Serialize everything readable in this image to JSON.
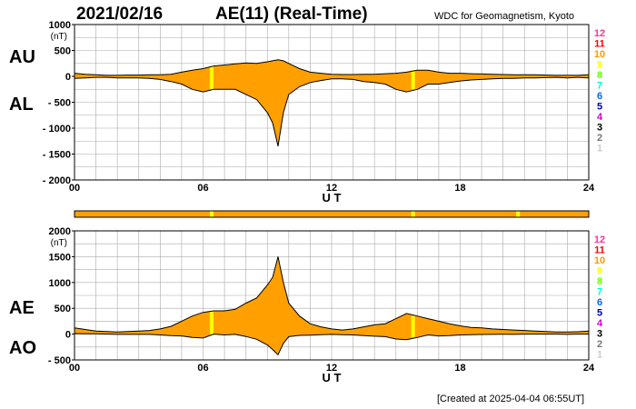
{
  "header": {
    "date": "2021/02/16",
    "title": "AE(11) (Real-Time)",
    "org": "WDC for Geomagnetism, Kyoto",
    "footer": "[Created at 2025-04-04 06:55UT]"
  },
  "panels": {
    "top": {
      "upper_label": "AU",
      "lower_label": "AL"
    },
    "bottom": {
      "upper_label": "AE",
      "lower_label": "AO"
    }
  },
  "station_scale": {
    "entries": [
      {
        "label": "12",
        "color": "#ff3399"
      },
      {
        "label": "11",
        "color": "#ff0000"
      },
      {
        "label": "10",
        "color": "#ff9900"
      },
      {
        "label": "9",
        "color": "#ffff00"
      },
      {
        "label": "8",
        "color": "#66ff00"
      },
      {
        "label": "7",
        "color": "#00ffcc"
      },
      {
        "label": "6",
        "color": "#0066ff"
      },
      {
        "label": "5",
        "color": "#0000aa"
      },
      {
        "label": "4",
        "color": "#cc00cc"
      },
      {
        "label": "3",
        "color": "#000000"
      },
      {
        "label": "2",
        "color": "#777777"
      },
      {
        "label": "1",
        "color": "#cccccc"
      }
    ]
  },
  "colors": {
    "fill": "#ffa000",
    "gap_fill": "#ffff00",
    "line": "#000000",
    "grid": "#aaaaaa"
  },
  "chart_data": [
    {
      "type": "area",
      "panel": "AU/AL",
      "xlabel": "U T",
      "ylabel_unit": "(nT)",
      "x_ticks": [
        "00",
        "06",
        "12",
        "18",
        "24"
      ],
      "xlim": [
        0,
        24
      ],
      "y_ticks": [
        "1000",
        "500",
        "0",
        "- 500",
        "- 1000",
        "- 1500",
        "- 2000"
      ],
      "ylim": [
        -2000,
        1000
      ],
      "grid": true,
      "x": [
        0,
        0.5,
        1,
        1.5,
        2,
        2.5,
        3,
        3.5,
        4,
        4.5,
        5,
        5.5,
        6,
        6.5,
        7,
        7.5,
        8,
        8.5,
        9,
        9.25,
        9.5,
        9.75,
        10,
        10.5,
        11,
        11.5,
        12,
        12.5,
        13,
        13.5,
        14,
        14.5,
        15,
        15.5,
        16,
        16.5,
        17,
        17.5,
        18,
        18.5,
        19,
        19.5,
        20,
        20.5,
        21,
        21.5,
        22,
        22.5,
        23,
        23.5,
        24
      ],
      "series": [
        {
          "name": "AU",
          "values": [
            60,
            40,
            30,
            20,
            20,
            25,
            25,
            30,
            30,
            40,
            80,
            120,
            150,
            200,
            220,
            240,
            260,
            250,
            280,
            300,
            320,
            300,
            250,
            150,
            80,
            60,
            40,
            35,
            35,
            40,
            40,
            50,
            60,
            80,
            120,
            120,
            80,
            60,
            60,
            50,
            45,
            40,
            35,
            30,
            30,
            30,
            25,
            20,
            20,
            20,
            30
          ]
        },
        {
          "name": "AL",
          "values": [
            -40,
            -30,
            -20,
            -20,
            -30,
            -30,
            -30,
            -40,
            -60,
            -100,
            -150,
            -250,
            -300,
            -250,
            -250,
            -250,
            -350,
            -450,
            -700,
            -900,
            -1350,
            -700,
            -350,
            -200,
            -120,
            -80,
            -50,
            -50,
            -60,
            -100,
            -120,
            -150,
            -250,
            -300,
            -250,
            -150,
            -150,
            -120,
            -90,
            -70,
            -60,
            -50,
            -40,
            -40,
            -30,
            -30,
            -25,
            -20,
            -30,
            -20,
            -30
          ]
        }
      ],
      "gaps": [
        6.4,
        15.8
      ]
    },
    {
      "type": "area",
      "panel": "AE/AO",
      "xlabel": "U T",
      "ylabel_unit": "(nT)",
      "x_ticks": [
        "00",
        "06",
        "12",
        "18",
        "24"
      ],
      "xlim": [
        0,
        24
      ],
      "y_ticks": [
        "2000",
        "1500",
        "1000",
        "500",
        "0",
        "- 500"
      ],
      "ylim": [
        -500,
        2000
      ],
      "grid": true,
      "x": [
        0,
        0.5,
        1,
        1.5,
        2,
        2.5,
        3,
        3.5,
        4,
        4.5,
        5,
        5.5,
        6,
        6.5,
        7,
        7.5,
        8,
        8.5,
        9,
        9.25,
        9.5,
        9.75,
        10,
        10.5,
        11,
        11.5,
        12,
        12.5,
        13,
        13.5,
        14,
        14.5,
        15,
        15.5,
        16,
        16.5,
        17,
        17.5,
        18,
        18.5,
        19,
        19.5,
        20,
        20.5,
        21,
        21.5,
        22,
        22.5,
        23,
        23.5,
        24
      ],
      "series": [
        {
          "name": "AE",
          "values": [
            120,
            90,
            60,
            50,
            40,
            50,
            60,
            70,
            100,
            150,
            250,
            350,
            420,
            450,
            450,
            480,
            600,
            700,
            950,
            1100,
            1500,
            1000,
            600,
            350,
            200,
            140,
            100,
            80,
            100,
            140,
            180,
            200,
            300,
            400,
            350,
            300,
            250,
            200,
            160,
            130,
            120,
            100,
            90,
            80,
            70,
            60,
            50,
            40,
            40,
            45,
            60
          ]
        },
        {
          "name": "AO",
          "values": [
            10,
            5,
            5,
            0,
            -5,
            -5,
            -5,
            -5,
            -15,
            -30,
            -35,
            -65,
            -75,
            0,
            -15,
            -5,
            -45,
            -100,
            -210,
            -300,
            -400,
            -180,
            -50,
            -25,
            -20,
            -10,
            -5,
            -10,
            -15,
            -30,
            -40,
            -50,
            -95,
            -110,
            -65,
            -15,
            -35,
            -30,
            -15,
            -10,
            -7,
            -5,
            -3,
            -5,
            0,
            0,
            0,
            0,
            -5,
            0,
            0
          ]
        }
      ],
      "gaps": [
        6.4,
        15.8
      ]
    }
  ],
  "coverage_bar": {
    "colors": [
      "#ffa000",
      "#ffff00"
    ],
    "gaps": [
      6.4,
      15.8,
      20.7
    ]
  }
}
